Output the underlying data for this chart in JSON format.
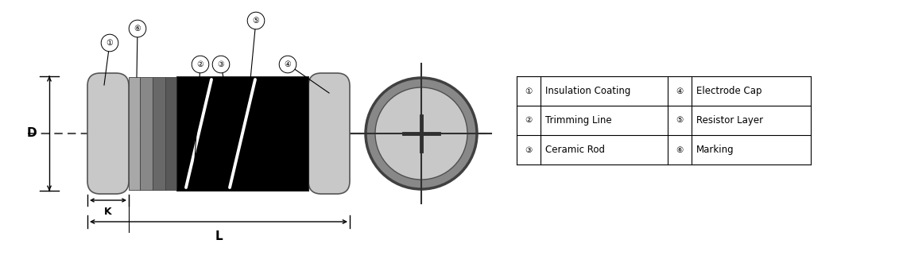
{
  "bg_color": "#ffffff",
  "gray_light": "#c8c8c8",
  "gray_mid": "#808080",
  "gray_dark": "#585858",
  "black": "#000000",
  "white": "#ffffff",
  "dashed_color": "#505050",
  "legend_items": [
    [
      "①",
      "Insulation Coating",
      "④",
      "Electrode Cap"
    ],
    [
      "②",
      "Trimming Line",
      "⑤",
      "Resistor Layer"
    ],
    [
      "③",
      "Ceramic Rod",
      "⑥",
      "Marking"
    ]
  ],
  "font_size_label": 8.5,
  "font_size_num": 7.5
}
